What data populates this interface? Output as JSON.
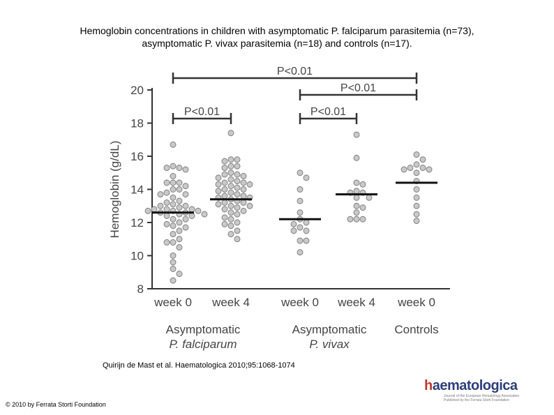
{
  "title": {
    "line1": "Hemoglobin concentrations in children with asymptomatic P. falciparum parasitemia (n=73),",
    "line2": "asymptomatic P. vivax parasitemia (n=18) and controls (n=17)."
  },
  "chart_data": {
    "type": "scatter",
    "ylabel": "Hemoglobin (g/dL)",
    "ylim": [
      8,
      20
    ],
    "yticks": [
      8,
      10,
      12,
      14,
      16,
      18,
      20
    ],
    "grid": false,
    "groups": [
      {
        "label": "week 0",
        "category": "Asymptomatic",
        "category_italic": "P. falciparum",
        "mean": 12.6,
        "values": [
          16.7,
          15.4,
          15.3,
          15.3,
          15.2,
          14.8,
          14.4,
          14.4,
          14.4,
          14.2,
          14.0,
          14.0,
          13.8,
          13.7,
          13.7,
          13.5,
          13.3,
          13.2,
          13.1,
          13.0,
          13.0,
          12.9,
          12.8,
          12.8,
          12.8,
          12.7,
          12.7,
          12.7,
          12.6,
          12.6,
          12.5,
          12.5,
          12.4,
          12.4,
          12.2,
          12.2,
          12.0,
          11.9,
          11.8,
          11.7,
          11.5,
          11.3,
          11.0,
          10.8,
          10.8,
          10.5,
          10.0,
          9.6,
          9.2,
          8.9,
          8.5
        ]
      },
      {
        "label": "week 4",
        "category": "Asymptomatic",
        "category_italic": "P. falciparum",
        "mean": 13.4,
        "values": [
          17.4,
          15.8,
          15.8,
          15.7,
          15.4,
          15.4,
          15.3,
          15.0,
          14.9,
          14.9,
          14.8,
          14.7,
          14.6,
          14.5,
          14.4,
          14.4,
          14.3,
          14.3,
          14.2,
          14.1,
          14.0,
          14.0,
          13.9,
          13.8,
          13.7,
          13.6,
          13.6,
          13.5,
          13.5,
          13.4,
          13.3,
          13.2,
          13.2,
          13.1,
          13.0,
          13.0,
          12.9,
          12.8,
          12.7,
          12.6,
          12.5,
          12.3,
          12.2,
          12.0,
          11.9,
          11.8,
          11.5,
          11.3,
          11.0
        ]
      },
      {
        "label": "week 0",
        "category": "Asymptomatic",
        "category_italic": "P. vivax",
        "mean": 12.2,
        "values": [
          15.0,
          14.7,
          14.0,
          13.3,
          12.6,
          12.2,
          12.0,
          11.9,
          11.7,
          11.5,
          11.5,
          10.9,
          10.9,
          10.2
        ]
      },
      {
        "label": "week 4",
        "category": "Asymptomatic",
        "category_italic": "P. vivax",
        "mean": 13.7,
        "values": [
          17.3,
          15.9,
          14.4,
          14.3,
          13.9,
          13.8,
          13.8,
          13.5,
          13.5,
          13.0,
          12.9,
          12.6,
          12.2,
          12.2,
          12.2
        ]
      },
      {
        "label": "week 0",
        "category": "Controls",
        "category_italic": "",
        "mean": 14.4,
        "values": [
          16.1,
          15.8,
          15.5,
          15.3,
          15.3,
          15.2,
          15.2,
          15.0,
          14.5,
          14.0,
          13.5,
          13.0,
          12.5,
          12.1
        ]
      }
    ],
    "categories": [
      "Asymptomatic",
      "Asymptomatic",
      "Controls"
    ],
    "category_italics": [
      "P. falciparum",
      "P. vivax",
      ""
    ],
    "significance": [
      {
        "label": "P<0.01",
        "from": 0,
        "to": 4
      },
      {
        "label": "P<0.01",
        "from": 2,
        "to": 4
      },
      {
        "label": "P<0.01",
        "from": 0,
        "to": 1
      },
      {
        "label": "P<0.01",
        "from": 2,
        "to": 3
      }
    ]
  },
  "citation": "Quirijn de Mast et al. Haematologica 2010;95:1068-1074",
  "copyright": "© 2010 by Ferrata Storti Foundation",
  "logo": {
    "h": "h",
    "word": "aematologica",
    "tag1": "Journal of the European Hematology Association",
    "tag2": "Published by the Ferrata Storti Foundation"
  }
}
